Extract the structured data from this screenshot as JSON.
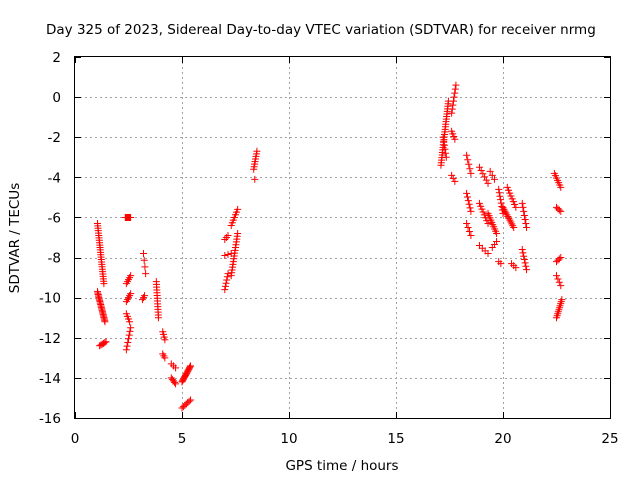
{
  "chart_data": {
    "type": "scatter",
    "title": "Day 325 of 2023, Sidereal Day-to-day VTEC variation (SDTVAR) for receiver nrmg",
    "xlabel": "GPS time / hours",
    "ylabel": "SDTVAR / TECUs",
    "xlim": [
      0,
      25
    ],
    "ylim": [
      -16,
      2
    ],
    "xticks": [
      0,
      5,
      10,
      15,
      20,
      25
    ],
    "yticks": [
      -16,
      -14,
      -12,
      -10,
      -8,
      -6,
      -4,
      -2,
      0,
      2
    ],
    "grid": true,
    "marker": "plus",
    "color": "#ff0000",
    "segments": [
      {
        "x0": 1.05,
        "y0": -6.3,
        "x1": 1.35,
        "y1": -9.3,
        "n": 26
      },
      {
        "x0": 1.05,
        "y0": -9.7,
        "x1": 1.4,
        "y1": -11.2,
        "n": 22
      },
      {
        "x0": 1.15,
        "y0": -12.4,
        "x1": 1.45,
        "y1": -12.2,
        "n": 6
      },
      {
        "x0": 2.35,
        "y0": -6.0,
        "x1": 2.6,
        "y1": -6.0,
        "n": 8
      },
      {
        "x0": 2.4,
        "y0": -9.3,
        "x1": 2.6,
        "y1": -8.9,
        "n": 5
      },
      {
        "x0": 2.4,
        "y0": -10.2,
        "x1": 2.6,
        "y1": -9.8,
        "n": 5
      },
      {
        "x0": 2.4,
        "y0": -10.8,
        "x1": 2.55,
        "y1": -11.2,
        "n": 4
      },
      {
        "x0": 2.4,
        "y0": -12.6,
        "x1": 2.6,
        "y1": -11.5,
        "n": 7
      },
      {
        "x0": 3.2,
        "y0": -7.8,
        "x1": 3.3,
        "y1": -8.8,
        "n": 4
      },
      {
        "x0": 3.15,
        "y0": -10.1,
        "x1": 3.25,
        "y1": -9.9,
        "n": 3
      },
      {
        "x0": 3.8,
        "y0": -9.2,
        "x1": 3.9,
        "y1": -11.0,
        "n": 14
      },
      {
        "x0": 4.1,
        "y0": -11.7,
        "x1": 4.2,
        "y1": -12.1,
        "n": 4
      },
      {
        "x0": 4.1,
        "y0": -12.8,
        "x1": 4.2,
        "y1": -13.0,
        "n": 3
      },
      {
        "x0": 4.5,
        "y0": -13.3,
        "x1": 4.7,
        "y1": -13.5,
        "n": 3
      },
      {
        "x0": 4.5,
        "y0": -14.0,
        "x1": 4.7,
        "y1": -14.3,
        "n": 5
      },
      {
        "x0": 5.0,
        "y0": -15.5,
        "x1": 5.4,
        "y1": -15.1,
        "n": 7
      },
      {
        "x0": 5.0,
        "y0": -14.2,
        "x1": 5.4,
        "y1": -13.4,
        "n": 16
      },
      {
        "x0": 7.0,
        "y0": -9.6,
        "x1": 7.15,
        "y1": -8.8,
        "n": 6
      },
      {
        "x0": 7.0,
        "y0": -7.1,
        "x1": 7.15,
        "y1": -6.9,
        "n": 3
      },
      {
        "x0": 7.0,
        "y0": -7.9,
        "x1": 7.3,
        "y1": -7.8,
        "n": 3
      },
      {
        "x0": 7.3,
        "y0": -8.9,
        "x1": 7.6,
        "y1": -6.8,
        "n": 16
      },
      {
        "x0": 7.3,
        "y0": -6.4,
        "x1": 7.6,
        "y1": -5.6,
        "n": 7
      },
      {
        "x0": 8.35,
        "y0": -3.6,
        "x1": 8.5,
        "y1": -2.7,
        "n": 8
      },
      {
        "x0": 8.4,
        "y0": -4.1,
        "x1": 8.4,
        "y1": -4.1,
        "n": 1
      },
      {
        "x0": 17.1,
        "y0": -3.4,
        "x1": 17.45,
        "y1": -0.2,
        "n": 26
      },
      {
        "x0": 17.2,
        "y0": -2.0,
        "x1": 17.35,
        "y1": -3.0,
        "n": 6
      },
      {
        "x0": 17.6,
        "y0": -0.8,
        "x1": 17.8,
        "y1": 0.6,
        "n": 8
      },
      {
        "x0": 17.6,
        "y0": -1.7,
        "x1": 17.75,
        "y1": -2.1,
        "n": 4
      },
      {
        "x0": 17.6,
        "y0": -3.9,
        "x1": 17.75,
        "y1": -4.2,
        "n": 3
      },
      {
        "x0": 18.3,
        "y0": -2.9,
        "x1": 18.5,
        "y1": -3.8,
        "n": 5
      },
      {
        "x0": 18.3,
        "y0": -4.8,
        "x1": 18.5,
        "y1": -5.7,
        "n": 6
      },
      {
        "x0": 18.3,
        "y0": -6.3,
        "x1": 18.5,
        "y1": -6.9,
        "n": 4
      },
      {
        "x0": 18.9,
        "y0": -3.5,
        "x1": 19.3,
        "y1": -4.3,
        "n": 6
      },
      {
        "x0": 18.9,
        "y0": -5.3,
        "x1": 19.3,
        "y1": -6.3,
        "n": 8
      },
      {
        "x0": 18.9,
        "y0": -7.4,
        "x1": 19.3,
        "y1": -7.8,
        "n": 4
      },
      {
        "x0": 19.3,
        "y0": -5.8,
        "x1": 19.7,
        "y1": -6.8,
        "n": 10
      },
      {
        "x0": 19.4,
        "y0": -3.7,
        "x1": 19.6,
        "y1": -4.1,
        "n": 3
      },
      {
        "x0": 19.5,
        "y0": -7.5,
        "x1": 19.7,
        "y1": -7.2,
        "n": 3
      },
      {
        "x0": 19.8,
        "y0": -4.6,
        "x1": 20.0,
        "y1": -5.8,
        "n": 8
      },
      {
        "x0": 19.8,
        "y0": -8.2,
        "x1": 19.9,
        "y1": -8.3,
        "n": 2
      },
      {
        "x0": 20.0,
        "y0": -5.5,
        "x1": 20.5,
        "y1": -6.5,
        "n": 12
      },
      {
        "x0": 20.2,
        "y0": -4.5,
        "x1": 20.6,
        "y1": -5.5,
        "n": 8
      },
      {
        "x0": 20.4,
        "y0": -8.3,
        "x1": 20.6,
        "y1": -8.5,
        "n": 3
      },
      {
        "x0": 20.9,
        "y0": -5.3,
        "x1": 21.1,
        "y1": -6.5,
        "n": 7
      },
      {
        "x0": 20.9,
        "y0": -7.6,
        "x1": 21.1,
        "y1": -8.6,
        "n": 7
      },
      {
        "x0": 22.4,
        "y0": -3.8,
        "x1": 22.7,
        "y1": -4.5,
        "n": 7
      },
      {
        "x0": 22.5,
        "y0": -5.5,
        "x1": 22.7,
        "y1": -5.7,
        "n": 4
      },
      {
        "x0": 22.5,
        "y0": -8.2,
        "x1": 22.7,
        "y1": -8.0,
        "n": 4
      },
      {
        "x0": 22.5,
        "y0": -8.9,
        "x1": 22.7,
        "y1": -9.4,
        "n": 4
      },
      {
        "x0": 22.5,
        "y0": -11.0,
        "x1": 22.75,
        "y1": -10.1,
        "n": 10
      }
    ]
  }
}
